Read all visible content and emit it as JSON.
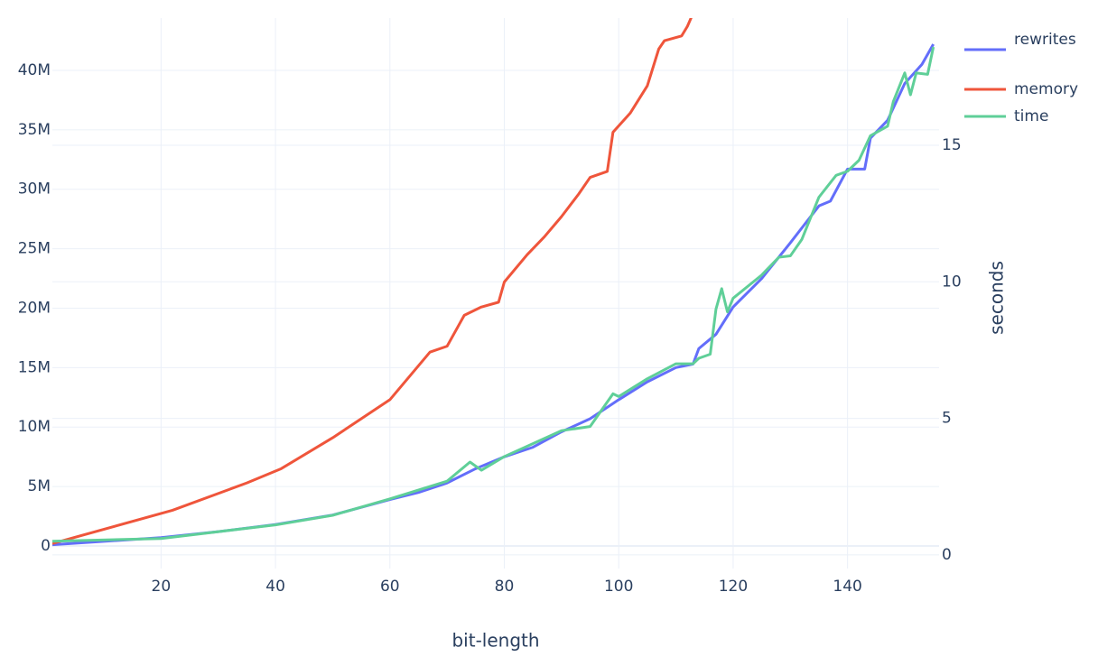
{
  "chart_data": {
    "type": "line",
    "xlabel": "bit-length",
    "y2label": "seconds",
    "xlim": [
      1,
      156
    ],
    "ylim": [
      -1900000,
      44400000
    ],
    "y2lim": [
      -0.5,
      19.66
    ],
    "xticks": [
      20,
      40,
      60,
      80,
      100,
      120,
      140
    ],
    "yticks": [
      0,
      {
        "value": 5000000,
        "label": "5M"
      },
      {
        "value": 10000000,
        "label": "10M"
      },
      {
        "value": 15000000,
        "label": "15M"
      },
      {
        "value": 20000000,
        "label": "20M"
      },
      {
        "value": 25000000,
        "label": "25M"
      },
      {
        "value": 30000000,
        "label": "30M"
      },
      {
        "value": 35000000,
        "label": "35M"
      },
      {
        "value": 40000000,
        "label": "40M"
      }
    ],
    "y2ticks": [
      0,
      5,
      10,
      15
    ],
    "grid": true,
    "legend": "top-right",
    "series": [
      {
        "name": "rewrites",
        "color": "#636efa",
        "x": [
          1,
          20,
          30,
          40,
          50,
          60,
          65,
          70,
          75,
          80,
          85,
          90,
          95,
          100,
          105,
          110,
          113,
          114,
          117,
          120,
          125,
          130,
          135,
          137,
          140,
          143,
          144,
          147,
          150,
          153,
          155
        ],
        "values": [
          100000,
          700000,
          1200000,
          1800000,
          2600000,
          3900000,
          4500000,
          5300000,
          6500000,
          7500000,
          8300000,
          9600000,
          10700000,
          12300000,
          13800000,
          15000000,
          15300000,
          16600000,
          17800000,
          20100000,
          22500000,
          25500000,
          28600000,
          29000000,
          31700000,
          31700000,
          34300000,
          35800000,
          38900000,
          40500000,
          42200000
        ]
      },
      {
        "name": "memory",
        "color": "#ef553b",
        "x": [
          1,
          22,
          35,
          41,
          50,
          60,
          67,
          70,
          73,
          76,
          79,
          80,
          84,
          87,
          90,
          93,
          95,
          98,
          99,
          102,
          105,
          107,
          108,
          111,
          112,
          113
        ],
        "values": [
          200000,
          3000000,
          5300000,
          6500000,
          9100000,
          12300000,
          16300000,
          16800000,
          19400000,
          20100000,
          20500000,
          22200000,
          24500000,
          26000000,
          27700000,
          29600000,
          31000000,
          31500000,
          34800000,
          36400000,
          38700000,
          41800000,
          42500000,
          42900000,
          43700000,
          44800000
        ]
      },
      {
        "name": "time",
        "color": "#5fcf98",
        "axis": "y2",
        "x": [
          1,
          20,
          40,
          50,
          60,
          70,
          74,
          76,
          80,
          90,
          95,
          99,
          100,
          105,
          110,
          113,
          114,
          116,
          117,
          118,
          119,
          120,
          125,
          128,
          130,
          132,
          135,
          138,
          140,
          142,
          144,
          147,
          148,
          150,
          151,
          152,
          154,
          155
        ],
        "values": [
          0.5,
          0.6,
          1.1,
          1.45,
          2.05,
          2.7,
          3.4,
          3.1,
          3.6,
          4.55,
          4.7,
          5.9,
          5.8,
          6.45,
          7.0,
          7.0,
          7.2,
          7.35,
          9.0,
          9.75,
          8.9,
          9.4,
          10.25,
          10.9,
          10.95,
          11.55,
          13.1,
          13.9,
          14.05,
          14.45,
          15.35,
          15.7,
          16.6,
          17.65,
          16.85,
          17.65,
          17.6,
          18.6
        ]
      }
    ]
  }
}
